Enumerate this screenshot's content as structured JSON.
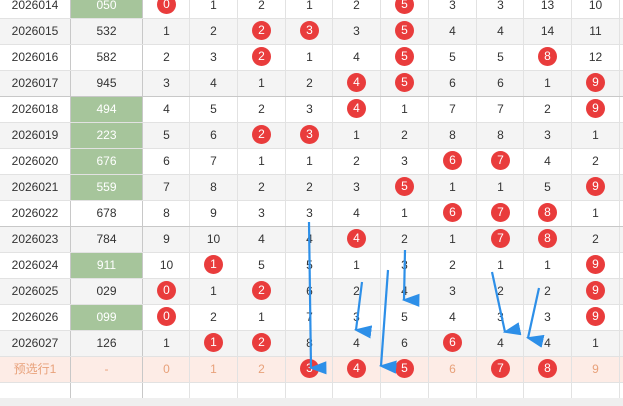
{
  "table": {
    "rows": [
      {
        "period": "2026014",
        "code": "050",
        "code_green": true,
        "nums": [
          {
            "v": "0",
            "hit": true
          },
          {
            "v": "1"
          },
          {
            "v": "2"
          },
          {
            "v": "1"
          },
          {
            "v": "2"
          },
          {
            "v": "5",
            "hit": true
          },
          {
            "v": "3"
          },
          {
            "v": "3"
          },
          {
            "v": "13"
          },
          {
            "v": "10"
          }
        ]
      },
      {
        "period": "2026015",
        "code": "532",
        "code_green": false,
        "nums": [
          {
            "v": "1"
          },
          {
            "v": "2"
          },
          {
            "v": "2",
            "hit": true
          },
          {
            "v": "3",
            "hit": true
          },
          {
            "v": "3"
          },
          {
            "v": "5",
            "hit": true
          },
          {
            "v": "4"
          },
          {
            "v": "4"
          },
          {
            "v": "14"
          },
          {
            "v": "11"
          }
        ]
      },
      {
        "period": "2026016",
        "code": "582",
        "code_green": false,
        "nums": [
          {
            "v": "2"
          },
          {
            "v": "3"
          },
          {
            "v": "2",
            "hit": true
          },
          {
            "v": "1"
          },
          {
            "v": "4"
          },
          {
            "v": "5",
            "hit": true
          },
          {
            "v": "5"
          },
          {
            "v": "5"
          },
          {
            "v": "8",
            "hit": true
          },
          {
            "v": "12"
          }
        ]
      },
      {
        "period": "2026017",
        "code": "945",
        "code_green": false,
        "nums": [
          {
            "v": "3"
          },
          {
            "v": "4"
          },
          {
            "v": "1"
          },
          {
            "v": "2"
          },
          {
            "v": "4",
            "hit": true
          },
          {
            "v": "5",
            "hit": true
          },
          {
            "v": "6"
          },
          {
            "v": "6"
          },
          {
            "v": "1"
          },
          {
            "v": "9",
            "hit": true
          }
        ]
      },
      {
        "period": "2026018",
        "code": "494",
        "code_green": true,
        "nums": [
          {
            "v": "4"
          },
          {
            "v": "5"
          },
          {
            "v": "2"
          },
          {
            "v": "3"
          },
          {
            "v": "4",
            "hit": true
          },
          {
            "v": "1"
          },
          {
            "v": "7"
          },
          {
            "v": "7"
          },
          {
            "v": "2"
          },
          {
            "v": "9",
            "hit": true
          }
        ]
      },
      {
        "period": "2026019",
        "code": "223",
        "code_green": true,
        "nums": [
          {
            "v": "5"
          },
          {
            "v": "6"
          },
          {
            "v": "2",
            "hit": true
          },
          {
            "v": "3",
            "hit": true
          },
          {
            "v": "1"
          },
          {
            "v": "2"
          },
          {
            "v": "8"
          },
          {
            "v": "8"
          },
          {
            "v": "3"
          },
          {
            "v": "1"
          }
        ]
      },
      {
        "period": "2026020",
        "code": "676",
        "code_green": true,
        "nums": [
          {
            "v": "6"
          },
          {
            "v": "7"
          },
          {
            "v": "1"
          },
          {
            "v": "1"
          },
          {
            "v": "2"
          },
          {
            "v": "3"
          },
          {
            "v": "6",
            "hit": true
          },
          {
            "v": "7",
            "hit": true
          },
          {
            "v": "4"
          },
          {
            "v": "2"
          }
        ]
      },
      {
        "period": "2026021",
        "code": "559",
        "code_green": true,
        "nums": [
          {
            "v": "7"
          },
          {
            "v": "8"
          },
          {
            "v": "2"
          },
          {
            "v": "2"
          },
          {
            "v": "3"
          },
          {
            "v": "5",
            "hit": true
          },
          {
            "v": "1"
          },
          {
            "v": "1"
          },
          {
            "v": "5"
          },
          {
            "v": "9",
            "hit": true
          }
        ]
      },
      {
        "period": "2026022",
        "code": "678",
        "code_green": false,
        "nums": [
          {
            "v": "8"
          },
          {
            "v": "9"
          },
          {
            "v": "3"
          },
          {
            "v": "3"
          },
          {
            "v": "4"
          },
          {
            "v": "1"
          },
          {
            "v": "6",
            "hit": true
          },
          {
            "v": "7",
            "hit": true
          },
          {
            "v": "8",
            "hit": true
          },
          {
            "v": "1"
          }
        ]
      },
      {
        "period": "2026023",
        "code": "784",
        "code_green": false,
        "nums": [
          {
            "v": "9"
          },
          {
            "v": "10"
          },
          {
            "v": "4"
          },
          {
            "v": "4"
          },
          {
            "v": "4",
            "hit": true
          },
          {
            "v": "2"
          },
          {
            "v": "1"
          },
          {
            "v": "7",
            "hit": true
          },
          {
            "v": "8",
            "hit": true
          },
          {
            "v": "2"
          }
        ]
      },
      {
        "period": "2026024",
        "code": "911",
        "code_green": true,
        "nums": [
          {
            "v": "10"
          },
          {
            "v": "1",
            "hit": true
          },
          {
            "v": "5"
          },
          {
            "v": "5"
          },
          {
            "v": "1"
          },
          {
            "v": "3"
          },
          {
            "v": "2"
          },
          {
            "v": "1"
          },
          {
            "v": "1"
          },
          {
            "v": "9",
            "hit": true
          }
        ]
      },
      {
        "period": "2026025",
        "code": "029",
        "code_green": false,
        "nums": [
          {
            "v": "0",
            "hit": true
          },
          {
            "v": "1"
          },
          {
            "v": "2",
            "hit": true
          },
          {
            "v": "6"
          },
          {
            "v": "2"
          },
          {
            "v": "4"
          },
          {
            "v": "3"
          },
          {
            "v": "2"
          },
          {
            "v": "2"
          },
          {
            "v": "9",
            "hit": true
          }
        ]
      },
      {
        "period": "2026026",
        "code": "099",
        "code_green": true,
        "nums": [
          {
            "v": "0",
            "hit": true
          },
          {
            "v": "2"
          },
          {
            "v": "1"
          },
          {
            "v": "7"
          },
          {
            "v": "3"
          },
          {
            "v": "5"
          },
          {
            "v": "4"
          },
          {
            "v": "3"
          },
          {
            "v": "3"
          },
          {
            "v": "9",
            "hit": true
          }
        ]
      },
      {
        "period": "2026027",
        "code": "126",
        "code_green": false,
        "nums": [
          {
            "v": "1"
          },
          {
            "v": "1",
            "hit": true
          },
          {
            "v": "2",
            "hit": true
          },
          {
            "v": "8"
          },
          {
            "v": "4"
          },
          {
            "v": "6"
          },
          {
            "v": "6",
            "hit": true
          },
          {
            "v": "4"
          },
          {
            "v": "4"
          },
          {
            "v": "1"
          }
        ]
      }
    ],
    "prediction": {
      "label": "预选行1",
      "code": "-",
      "nums": [
        {
          "v": "0"
        },
        {
          "v": "1"
        },
        {
          "v": "2"
        },
        {
          "v": "3",
          "hit": true
        },
        {
          "v": "4",
          "hit": true
        },
        {
          "v": "5",
          "hit": true
        },
        {
          "v": "6"
        },
        {
          "v": "7",
          "hit": true
        },
        {
          "v": "8",
          "hit": true
        },
        {
          "v": "9"
        }
      ]
    }
  },
  "colors": {
    "ball": "#e93c3c",
    "green_cell": "#a6c59b",
    "arrow": "#2d8fe8",
    "prediction_row": "#fdece6",
    "prediction_text": "#e8a17a"
  }
}
